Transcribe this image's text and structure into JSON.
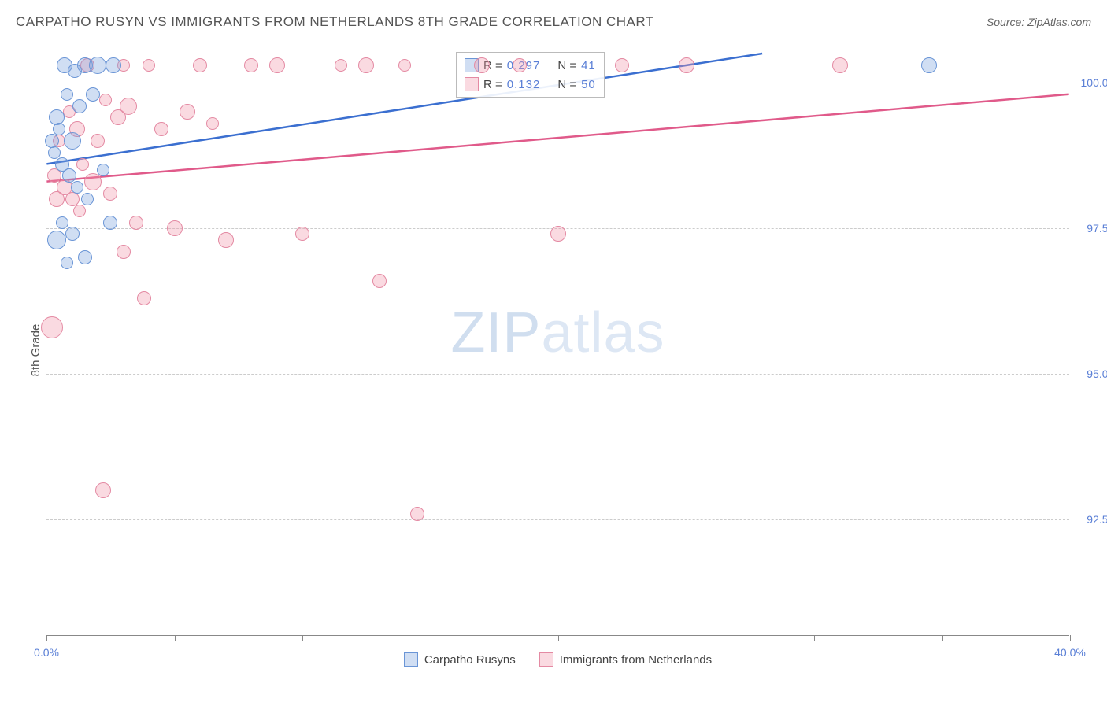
{
  "title": "CARPATHO RUSYN VS IMMIGRANTS FROM NETHERLANDS 8TH GRADE CORRELATION CHART",
  "source_label": "Source: ZipAtlas.com",
  "ylabel": "8th Grade",
  "watermark_a": "ZIP",
  "watermark_b": "atlas",
  "xlim": [
    0,
    40
  ],
  "ylim": [
    90.5,
    100.5
  ],
  "xtick_labels": {
    "start": "0.0%",
    "end": "40.0%"
  },
  "xtick_positions": [
    0,
    5,
    10,
    15,
    20,
    25,
    30,
    35,
    40
  ],
  "ytick_positions": [
    92.5,
    95.0,
    97.5,
    100.0
  ],
  "ytick_labels": [
    "92.5%",
    "95.0%",
    "97.5%",
    "100.0%"
  ],
  "series": {
    "blue": {
      "label": "Carpatho Rusyns",
      "color_fill": "rgba(120,160,220,0.35)",
      "color_stroke": "#6a95d6",
      "line_color": "#3b6fd0",
      "R": "0.297",
      "N": "41",
      "line": {
        "x1": 0,
        "y1": 98.6,
        "x2": 28,
        "y2": 100.5
      },
      "points": [
        {
          "x": 0.2,
          "y": 99.0,
          "r": 9
        },
        {
          "x": 0.3,
          "y": 98.8,
          "r": 8
        },
        {
          "x": 0.4,
          "y": 99.4,
          "r": 10
        },
        {
          "x": 0.5,
          "y": 99.2,
          "r": 8
        },
        {
          "x": 0.6,
          "y": 98.6,
          "r": 9
        },
        {
          "x": 0.7,
          "y": 100.3,
          "r": 10
        },
        {
          "x": 0.8,
          "y": 99.8,
          "r": 8
        },
        {
          "x": 0.9,
          "y": 98.4,
          "r": 9
        },
        {
          "x": 1.0,
          "y": 99.0,
          "r": 11
        },
        {
          "x": 1.1,
          "y": 100.2,
          "r": 9
        },
        {
          "x": 1.2,
          "y": 98.2,
          "r": 8
        },
        {
          "x": 1.3,
          "y": 99.6,
          "r": 9
        },
        {
          "x": 1.5,
          "y": 100.3,
          "r": 10
        },
        {
          "x": 1.6,
          "y": 98.0,
          "r": 8
        },
        {
          "x": 1.8,
          "y": 99.8,
          "r": 9
        },
        {
          "x": 2.0,
          "y": 100.3,
          "r": 11
        },
        {
          "x": 2.2,
          "y": 98.5,
          "r": 8
        },
        {
          "x": 2.5,
          "y": 97.6,
          "r": 9
        },
        {
          "x": 2.6,
          "y": 100.3,
          "r": 10
        },
        {
          "x": 1.0,
          "y": 97.4,
          "r": 9
        },
        {
          "x": 0.6,
          "y": 97.6,
          "r": 8
        },
        {
          "x": 0.4,
          "y": 97.3,
          "r": 12
        },
        {
          "x": 0.8,
          "y": 96.9,
          "r": 8
        },
        {
          "x": 1.5,
          "y": 97.0,
          "r": 9
        },
        {
          "x": 34.5,
          "y": 100.3,
          "r": 10
        }
      ]
    },
    "pink": {
      "label": "Immigrants from Netherlands",
      "color_fill": "rgba(240,150,170,0.35)",
      "color_stroke": "#e48aa3",
      "line_color": "#e05a8a",
      "R": "0.132",
      "N": "50",
      "line": {
        "x1": 0,
        "y1": 98.3,
        "x2": 40,
        "y2": 99.8
      },
      "points": [
        {
          "x": 0.3,
          "y": 98.4,
          "r": 9
        },
        {
          "x": 0.5,
          "y": 99.0,
          "r": 8
        },
        {
          "x": 0.7,
          "y": 98.2,
          "r": 10
        },
        {
          "x": 0.9,
          "y": 99.5,
          "r": 8
        },
        {
          "x": 1.0,
          "y": 98.0,
          "r": 9
        },
        {
          "x": 1.2,
          "y": 99.2,
          "r": 10
        },
        {
          "x": 1.4,
          "y": 98.6,
          "r": 8
        },
        {
          "x": 1.6,
          "y": 100.3,
          "r": 9
        },
        {
          "x": 1.8,
          "y": 98.3,
          "r": 11
        },
        {
          "x": 2.0,
          "y": 99.0,
          "r": 9
        },
        {
          "x": 2.3,
          "y": 99.7,
          "r": 8
        },
        {
          "x": 2.5,
          "y": 98.1,
          "r": 9
        },
        {
          "x": 2.8,
          "y": 99.4,
          "r": 10
        },
        {
          "x": 3.0,
          "y": 100.3,
          "r": 8
        },
        {
          "x": 3.5,
          "y": 97.6,
          "r": 9
        },
        {
          "x": 3.2,
          "y": 99.6,
          "r": 11
        },
        {
          "x": 4.0,
          "y": 100.3,
          "r": 8
        },
        {
          "x": 4.5,
          "y": 99.2,
          "r": 9
        },
        {
          "x": 5.0,
          "y": 97.5,
          "r": 10
        },
        {
          "x": 5.5,
          "y": 99.5,
          "r": 10
        },
        {
          "x": 6.0,
          "y": 100.3,
          "r": 9
        },
        {
          "x": 6.5,
          "y": 99.3,
          "r": 8
        },
        {
          "x": 7.0,
          "y": 97.3,
          "r": 10
        },
        {
          "x": 8.0,
          "y": 100.3,
          "r": 9
        },
        {
          "x": 9.0,
          "y": 100.3,
          "r": 10
        },
        {
          "x": 10.0,
          "y": 97.4,
          "r": 9
        },
        {
          "x": 11.5,
          "y": 100.3,
          "r": 8
        },
        {
          "x": 12.5,
          "y": 100.3,
          "r": 10
        },
        {
          "x": 13.0,
          "y": 96.6,
          "r": 9
        },
        {
          "x": 14.0,
          "y": 100.3,
          "r": 8
        },
        {
          "x": 14.5,
          "y": 92.6,
          "r": 9
        },
        {
          "x": 17.0,
          "y": 100.3,
          "r": 10
        },
        {
          "x": 18.5,
          "y": 100.3,
          "r": 9
        },
        {
          "x": 20.0,
          "y": 97.4,
          "r": 10
        },
        {
          "x": 22.5,
          "y": 100.3,
          "r": 9
        },
        {
          "x": 25.0,
          "y": 100.3,
          "r": 10
        },
        {
          "x": 31.0,
          "y": 100.3,
          "r": 10
        },
        {
          "x": 3.8,
          "y": 96.3,
          "r": 9
        },
        {
          "x": 2.2,
          "y": 93.0,
          "r": 10
        },
        {
          "x": 0.2,
          "y": 95.8,
          "r": 14
        },
        {
          "x": 0.4,
          "y": 98.0,
          "r": 10
        },
        {
          "x": 3.0,
          "y": 97.1,
          "r": 9
        },
        {
          "x": 1.3,
          "y": 97.8,
          "r": 8
        }
      ]
    }
  },
  "r_legend": {
    "r_label": "R =",
    "n_label": "N ="
  },
  "bottom_legend": [
    {
      "key": "blue"
    },
    {
      "key": "pink"
    }
  ]
}
